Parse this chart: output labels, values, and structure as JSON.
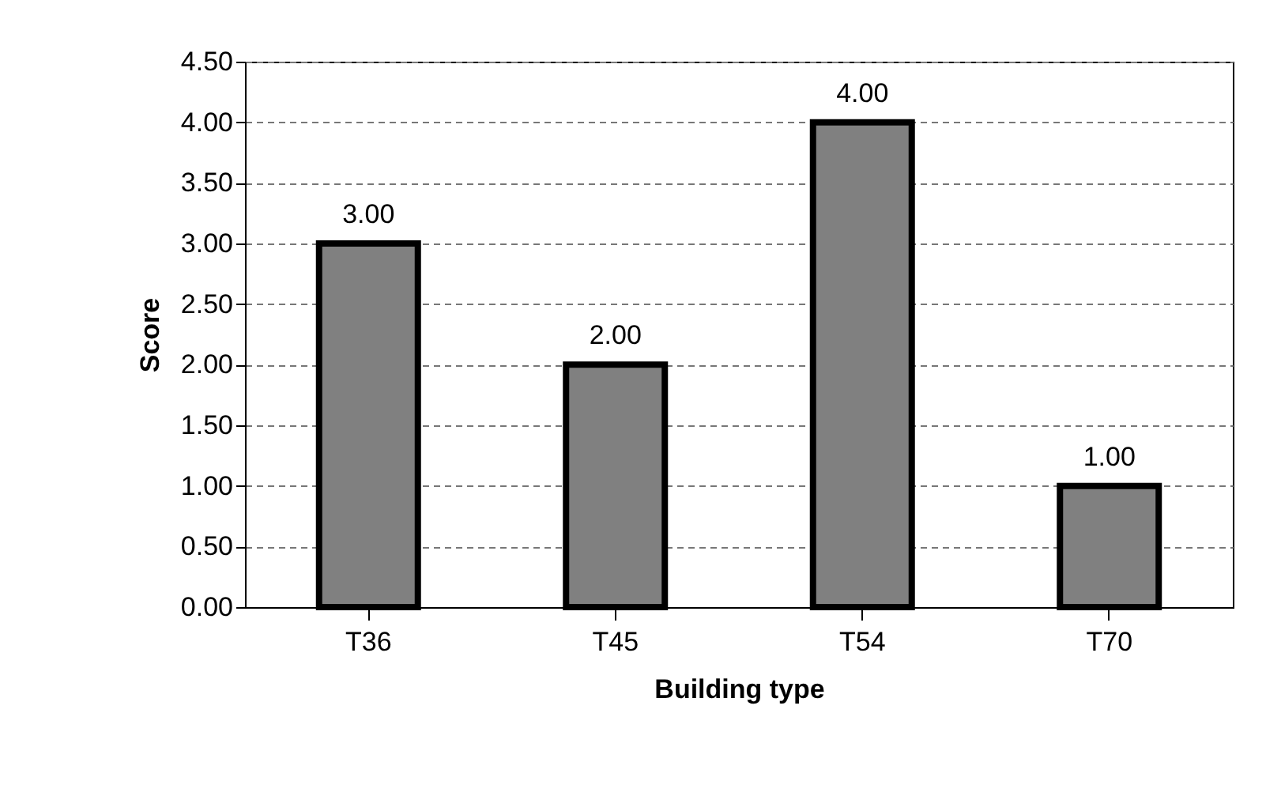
{
  "chart_data": {
    "type": "bar",
    "xlabel": "Building  type",
    "ylabel": "Score",
    "categories": [
      "T36",
      "T45",
      "T54",
      "T70"
    ],
    "values": [
      3,
      2,
      4,
      1
    ],
    "value_labels": [
      "3.00",
      "2.00",
      "4.00",
      "1.00"
    ],
    "color": "#808080",
    "ylim": [
      0,
      4.5
    ],
    "yticks": [
      {
        "value": 0,
        "label": "0.00"
      },
      {
        "value": 0.5,
        "label": "0.50"
      },
      {
        "value": 1,
        "label": "1.00"
      },
      {
        "value": 1.5,
        "label": "1.50"
      },
      {
        "value": 2,
        "label": "2.00"
      },
      {
        "value": 2.5,
        "label": "2.50"
      },
      {
        "value": 3,
        "label": "3.00"
      },
      {
        "value": 3.5,
        "label": "3.50"
      },
      {
        "value": 4,
        "label": "4.00"
      },
      {
        "value": 4.5,
        "label": "4.50"
      }
    ],
    "grid": "y"
  }
}
